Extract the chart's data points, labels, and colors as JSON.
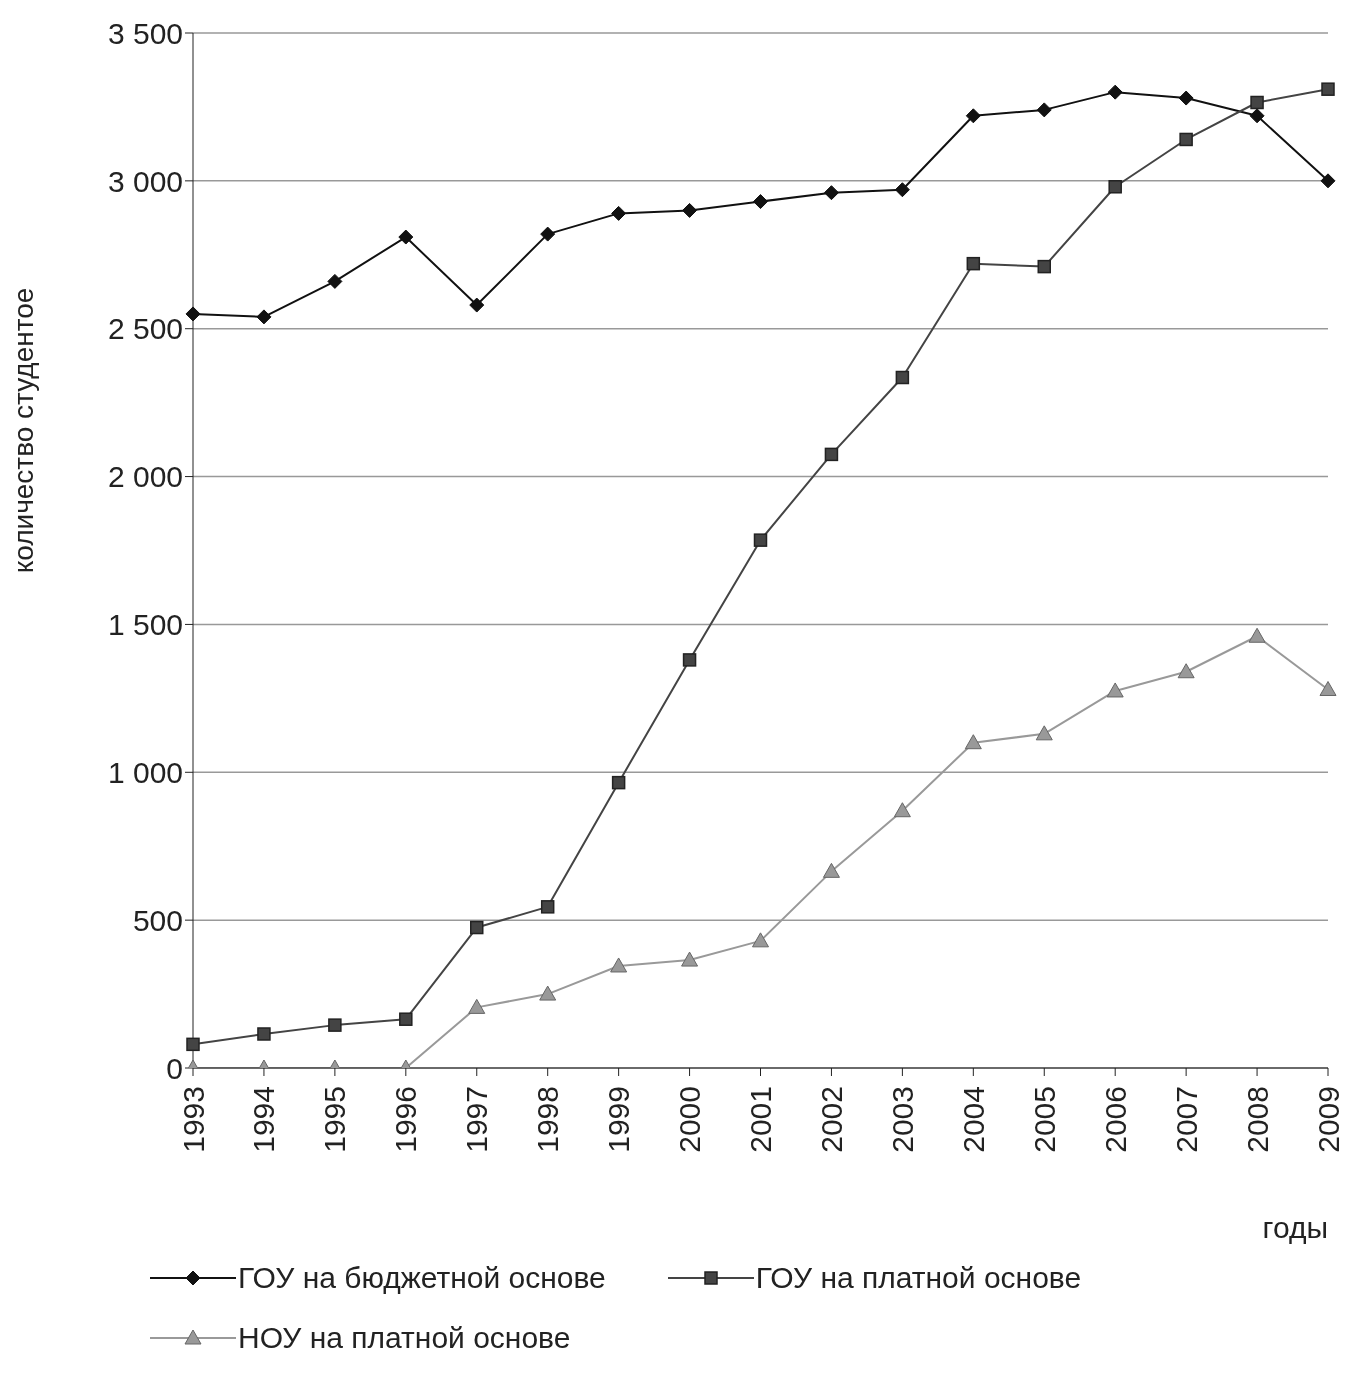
{
  "chart_data": {
    "type": "line",
    "ylabel": "количество студентое",
    "xlabel": "годы",
    "categories": [
      "1993",
      "1994",
      "1995",
      "1996",
      "1997",
      "1998",
      "1999",
      "2000",
      "2001",
      "2002",
      "2003",
      "2004",
      "2005",
      "2006",
      "2007",
      "2008",
      "2009"
    ],
    "ylim": [
      0,
      3500
    ],
    "yticks": [
      0,
      500,
      {
        "value": 1000,
        "label": "1 000"
      },
      {
        "value": 1500,
        "label": "1 500"
      },
      {
        "value": 2000,
        "label": "2 000"
      },
      {
        "value": 2500,
        "label": "2 500"
      },
      {
        "value": 3000,
        "label": "3 000"
      },
      {
        "value": 3500,
        "label": "3 500"
      }
    ],
    "grid": "y",
    "legend": "bottom",
    "line_style": "solid",
    "series": [
      {
        "name": "ГОУ на бюджетной основе",
        "color": "#111111",
        "marker": "diamond",
        "values": [
          2550,
          2540,
          2660,
          2810,
          2580,
          2820,
          2890,
          2900,
          2930,
          2960,
          2970,
          3220,
          3240,
          3300,
          3280,
          3220,
          3000
        ]
      },
      {
        "name": "ГОУ на платной основе",
        "color": "#444444",
        "marker": "square",
        "values": [
          80,
          115,
          145,
          165,
          475,
          545,
          965,
          1380,
          1785,
          2075,
          2335,
          2720,
          2710,
          2980,
          3140,
          3265,
          3310
        ]
      },
      {
        "name": "НОУ на платной основе",
        "color": "#999999",
        "marker": "triangle",
        "values": [
          0,
          0,
          0,
          0,
          205,
          250,
          345,
          365,
          430,
          665,
          870,
          1100,
          1130,
          1275,
          1340,
          1460,
          1280
        ]
      }
    ]
  }
}
